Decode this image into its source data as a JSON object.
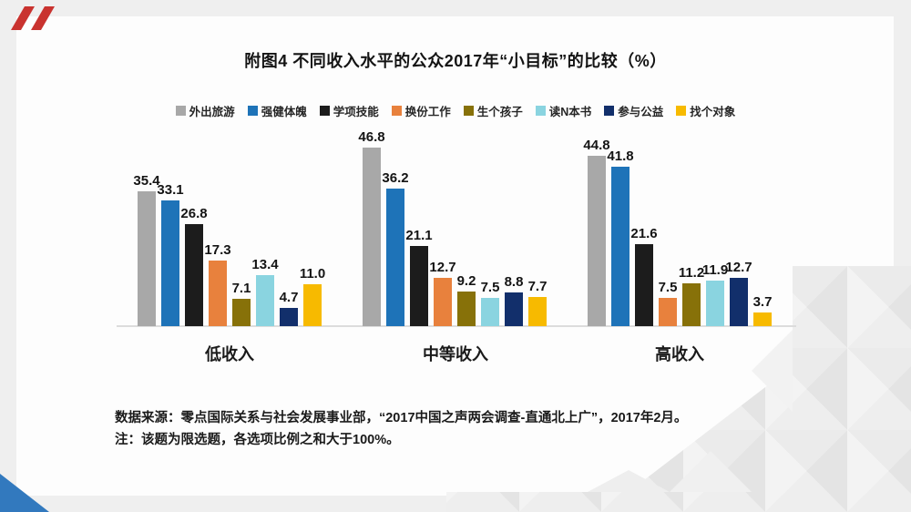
{
  "slide": {
    "source_line": "数据来源：零点国际关系与社会发展事业部，“2017中国之声两会调查-直通北上广”，2017年2月。",
    "note_line": "注：该题为限选题，各选项比例之和大于100%。"
  },
  "chart_data": {
    "type": "bar",
    "title": "附图4 不同收入水平的公众2017年“小目标”的比较（%）",
    "categories": [
      "低收入",
      "中等收入",
      "高收入"
    ],
    "series": [
      {
        "name": "外出旅游",
        "color": "#a8a8a8",
        "values": [
          35.4,
          46.8,
          44.8
        ]
      },
      {
        "name": "强健体魄",
        "color": "#1e73b8",
        "values": [
          33.1,
          36.2,
          41.8
        ]
      },
      {
        "name": "学项技能",
        "color": "#1c1c1c",
        "values": [
          26.8,
          21.1,
          21.6
        ]
      },
      {
        "name": "换份工作",
        "color": "#e8813d",
        "values": [
          17.3,
          12.7,
          7.5
        ]
      },
      {
        "name": "生个孩子",
        "color": "#877109",
        "values": [
          7.1,
          9.2,
          11.2
        ]
      },
      {
        "name": "读N本书",
        "color": "#8ad4e0",
        "values": [
          13.4,
          7.5,
          11.9
        ]
      },
      {
        "name": "参与公益",
        "color": "#122f6b",
        "values": [
          4.7,
          8.8,
          12.7
        ]
      },
      {
        "name": "找个对象",
        "color": "#f7ba00",
        "values": [
          11.0,
          7.7,
          3.7
        ]
      }
    ],
    "value_labels": true,
    "legend_position": "top",
    "grid": false,
    "ylim": [
      0,
      50
    ]
  },
  "colors": {
    "background": "#efefef",
    "page": "#fdfdfd",
    "axis": "#dcdcdc",
    "text": "#1a1a1a",
    "accent_red": "#c9332f",
    "accent_blue": "#3279be",
    "mosaic_dark": "#e4e4e4",
    "mosaic_light": "#f3f3f3"
  }
}
